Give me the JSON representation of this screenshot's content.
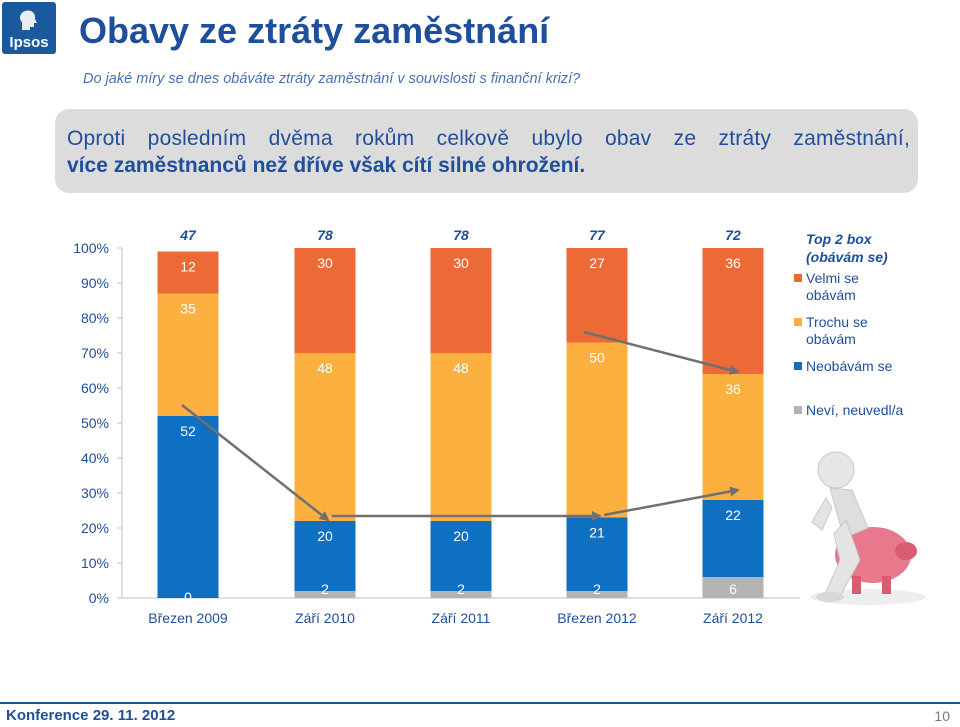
{
  "logo": {
    "text": "Ipsos"
  },
  "title": "Obavy ze ztráty zaměstnání",
  "subtitle": "Do jaké míry se dnes obáváte ztráty zaměstnání v souvislosti s finanční krizí?",
  "summary": {
    "line1": "Oproti posledním dvěma rokům celkově ubylo obav ze ztráty zaměstnání,",
    "line2": "více zaměstnanců než dříve však cítí silné ohrožení."
  },
  "footer": {
    "left": "Konference 29. 11. 2012",
    "page": "10"
  },
  "colors": {
    "velmi": "#ec6a35",
    "trochu": "#fbb040",
    "neobavam": "#0f6fc1",
    "nevi": "#b3b3b3",
    "title": "#1f4e9a"
  },
  "chart_data": {
    "type": "bar",
    "stacked": true,
    "categories": [
      "Březen 2009",
      "Září 2010",
      "Září 2011",
      "Březen 2012",
      "Září 2012"
    ],
    "series": [
      {
        "name": "Neví, neuvedl/a",
        "key": "nevi",
        "values": [
          0,
          2,
          2,
          2,
          6
        ]
      },
      {
        "name": "Neobávám se",
        "key": "neobavam",
        "values": [
          52,
          20,
          20,
          21,
          22
        ]
      },
      {
        "name": "Trochu se obávám",
        "key": "trochu",
        "values": [
          35,
          48,
          48,
          50,
          36
        ]
      },
      {
        "name": "Velmi se obávám",
        "key": "velmi",
        "values": [
          12,
          30,
          30,
          27,
          36
        ]
      }
    ],
    "top2box": {
      "label": "Top 2 box (obávám se)",
      "values": [
        47,
        78,
        78,
        77,
        72
      ]
    },
    "yticks": [
      "0%",
      "10%",
      "20%",
      "30%",
      "40%",
      "50%",
      "60%",
      "70%",
      "80%",
      "90%",
      "100%"
    ],
    "ylim": [
      0,
      100
    ],
    "legend_position": "right"
  }
}
